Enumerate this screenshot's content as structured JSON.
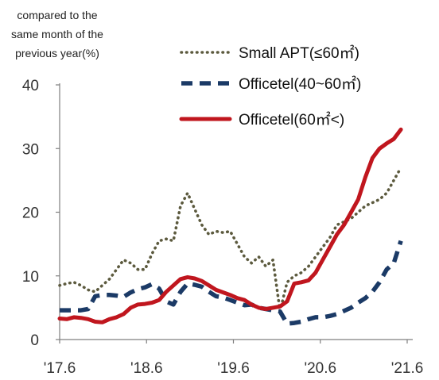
{
  "chart_data": {
    "type": "line",
    "ylabel": [
      "compared to the",
      "same month of the",
      "previous year(%)"
    ],
    "ylim": [
      0,
      40
    ],
    "yticks": [
      "0",
      "10",
      "20",
      "30",
      "40"
    ],
    "xlim": [
      0,
      49
    ],
    "xticks": [
      {
        "label": "'17.6",
        "x": 0
      },
      {
        "label": "'18.6",
        "x": 12
      },
      {
        "label": "'19.6",
        "x": 24
      },
      {
        "label": "'20.6",
        "x": 36
      },
      {
        "label": "'21.6",
        "x": 48
      }
    ],
    "grid": false,
    "legend_position": "top-right",
    "series": [
      {
        "name": "Small APT(≤60㎡)",
        "style": "dotted",
        "color": "#5c5a3e",
        "values": [
          8.5,
          8.8,
          9.0,
          8.5,
          7.8,
          7.5,
          8.5,
          9.5,
          11.0,
          12.5,
          12.0,
          11.0,
          11.0,
          13.5,
          15.5,
          15.8,
          15.5,
          21.0,
          23.0,
          20.5,
          18.0,
          16.5,
          17.0,
          16.8,
          17.0,
          15.0,
          13.0,
          12.0,
          13.0,
          11.5,
          12.5,
          4.5,
          9.0,
          10.0,
          10.5,
          11.5,
          13.0,
          14.5,
          16.0,
          18.0,
          18.5,
          19.0,
          20.0,
          21.0,
          21.5,
          22.0,
          23.0,
          25.0,
          27.0
        ]
      },
      {
        "name": "Officetel(40~60㎡)",
        "style": "dashed",
        "color": "#1b3a66",
        "values": [
          4.6,
          4.6,
          4.6,
          4.6,
          4.8,
          6.8,
          7.0,
          7.0,
          6.9,
          6.7,
          7.4,
          7.9,
          8.2,
          8.7,
          8.0,
          6.0,
          5.5,
          7.5,
          8.8,
          8.6,
          8.3,
          7.5,
          6.8,
          6.6,
          6.2,
          5.8,
          5.4,
          5.5,
          5.0,
          4.8,
          4.6,
          4.4,
          2.5,
          2.6,
          2.8,
          3.2,
          3.5,
          3.5,
          3.7,
          4.0,
          4.5,
          5.0,
          5.8,
          6.5,
          7.5,
          9.0,
          11.0,
          12.0,
          15.5
        ]
      },
      {
        "name": "Officetel(60㎡<)",
        "style": "solid",
        "color": "#c0161e",
        "values": [
          3.3,
          3.2,
          3.5,
          3.4,
          3.2,
          2.8,
          2.7,
          3.2,
          3.5,
          4.0,
          5.0,
          5.5,
          5.6,
          5.8,
          6.2,
          7.5,
          8.5,
          9.5,
          9.8,
          9.6,
          9.2,
          8.5,
          7.8,
          7.4,
          7.0,
          6.5,
          6.2,
          5.5,
          5.0,
          4.8,
          5.0,
          5.2,
          6.0,
          8.8,
          9.0,
          9.3,
          10.5,
          12.5,
          14.5,
          16.5,
          18.0,
          20.0,
          22.0,
          25.5,
          28.5,
          30.0,
          30.8,
          31.5,
          33.0
        ]
      }
    ]
  }
}
